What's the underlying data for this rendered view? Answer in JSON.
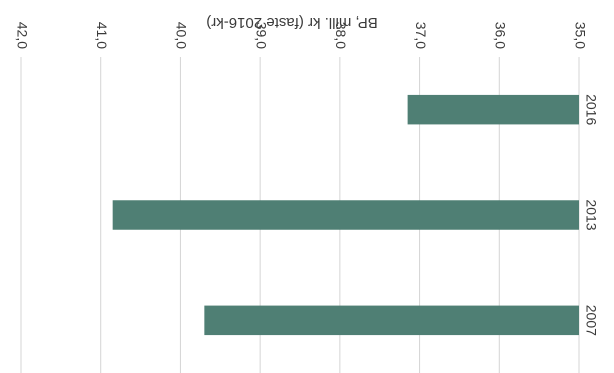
{
  "chart_data": {
    "type": "bar",
    "orientation": "horizontal",
    "rotation_degrees": 180,
    "categories": [
      "2007",
      "2013",
      "2016"
    ],
    "values": [
      39.7,
      40.85,
      37.15
    ],
    "xlabel": "BP, mill. kr (faste 2016-kr)",
    "xlim": [
      35.0,
      42.0
    ],
    "tick_values": [
      35.0,
      36.0,
      37.0,
      38.0,
      39.0,
      40.0,
      41.0,
      42.0
    ],
    "tick_labels": [
      "35,0",
      "36,0",
      "37,0",
      "38,0",
      "39,0",
      "40,0",
      "41,0",
      "42,0"
    ],
    "grid": true,
    "bar_color": "#4f7f74",
    "gridline_color": "#d4d4d4"
  }
}
